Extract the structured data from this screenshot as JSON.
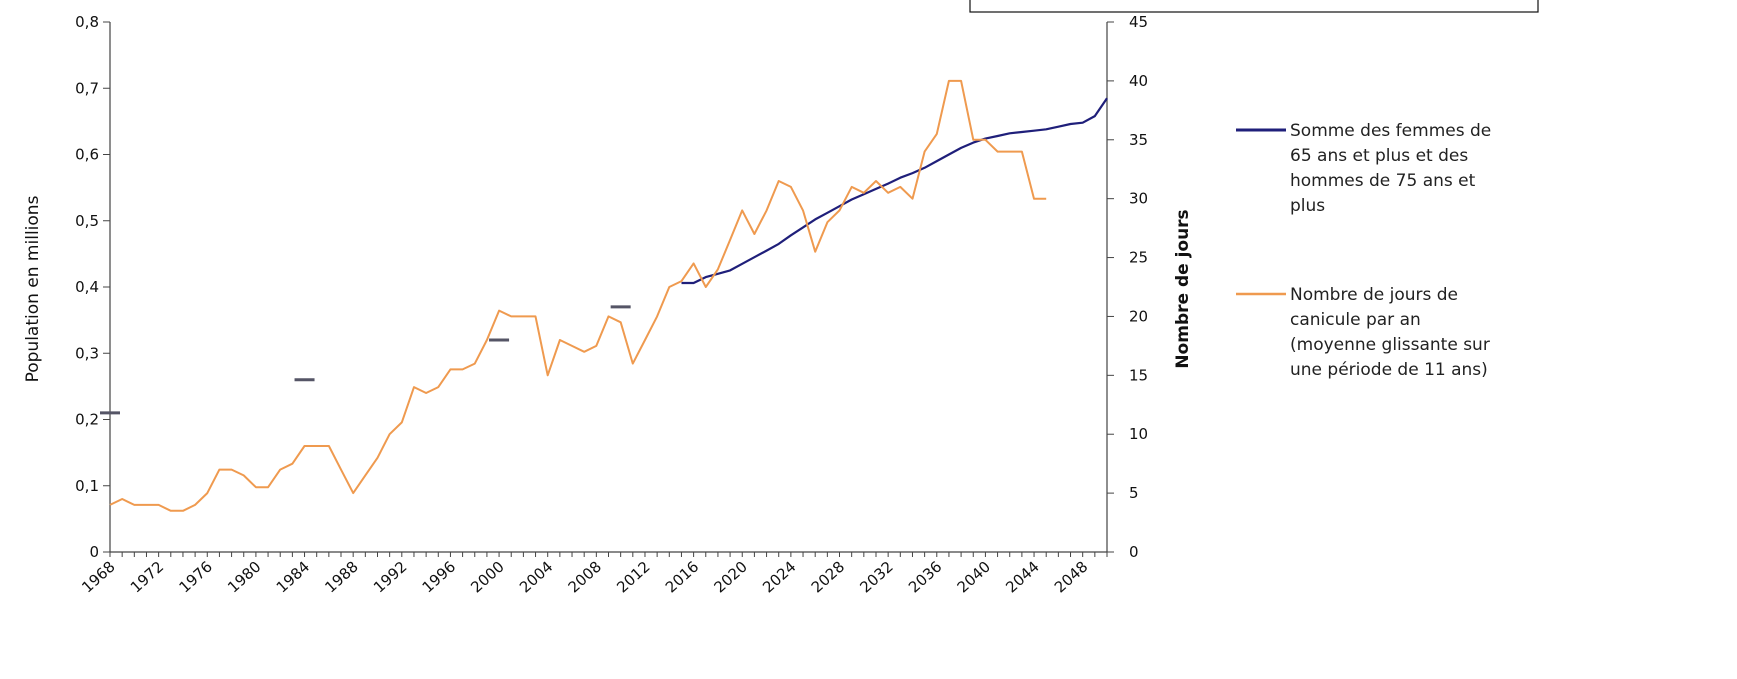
{
  "chart_data": {
    "type": "line",
    "ylabel_left": "Population en millions",
    "ylabel_right": "Nombre de jours",
    "y_left_range": [
      0,
      0.8
    ],
    "y_left_ticks": [
      "0",
      "0,1",
      "0,2",
      "0,3",
      "0,4",
      "0,5",
      "0,6",
      "0,7",
      "0,8"
    ],
    "y_right_range": [
      0,
      45
    ],
    "y_right_ticks": [
      "0",
      "5",
      "10",
      "15",
      "20",
      "25",
      "30",
      "35",
      "40",
      "45"
    ],
    "x_range": [
      1968,
      2050
    ],
    "x_tick_labels": [
      "1968",
      "1972",
      "1976",
      "1980",
      "1984",
      "1988",
      "1992",
      "1996",
      "2000",
      "2004",
      "2008",
      "2012",
      "2016",
      "2020",
      "2024",
      "2028",
      "2032",
      "2036",
      "2040",
      "2044",
      "2048"
    ],
    "grid": false,
    "legend_position": "right",
    "colors": {
      "population": "#1f1f7a",
      "heatwave": "#ef9a4f",
      "markers": "#555566",
      "axis": "#444444"
    },
    "series": [
      {
        "name": "Somme des femmes de 65 ans et plus et des hommes de 75 ans et plus",
        "axis": "left",
        "x": [
          2015,
          2016,
          2017,
          2018,
          2019,
          2020,
          2021,
          2022,
          2023,
          2024,
          2025,
          2026,
          2027,
          2028,
          2029,
          2030,
          2031,
          2032,
          2033,
          2034,
          2035,
          2036,
          2037,
          2038,
          2039,
          2040,
          2041,
          2042,
          2043,
          2044,
          2045,
          2046,
          2047,
          2048,
          2049,
          2050
        ],
        "values": [
          0.406,
          0.406,
          0.415,
          0.42,
          0.425,
          0.435,
          0.445,
          0.455,
          0.465,
          0.478,
          0.49,
          0.502,
          0.512,
          0.522,
          0.532,
          0.54,
          0.548,
          0.556,
          0.565,
          0.572,
          0.58,
          0.59,
          0.6,
          0.61,
          0.618,
          0.624,
          0.628,
          0.632,
          0.634,
          0.636,
          0.638,
          0.642,
          0.646,
          0.648,
          0.658,
          0.685
        ]
      },
      {
        "name": "Nombre de jours de canicule par an (moyenne glissante sur une période de 11 ans)",
        "axis": "right",
        "x": [
          1968,
          1969,
          1970,
          1971,
          1972,
          1973,
          1974,
          1975,
          1976,
          1977,
          1978,
          1979,
          1980,
          1981,
          1982,
          1983,
          1984,
          1985,
          1986,
          1987,
          1988,
          1989,
          1990,
          1991,
          1992,
          1993,
          1994,
          1995,
          1996,
          1997,
          1998,
          1999,
          2000,
          2001,
          2002,
          2003,
          2004,
          2005,
          2006,
          2007,
          2008,
          2009,
          2010,
          2011,
          2012,
          2013,
          2014,
          2015,
          2016,
          2017,
          2018,
          2019,
          2020,
          2021,
          2022,
          2023,
          2024,
          2025,
          2026,
          2027,
          2028,
          2029,
          2030,
          2031,
          2032,
          2033,
          2034,
          2035,
          2036,
          2037,
          2038,
          2039,
          2040,
          2041,
          2042,
          2043,
          2044,
          2045
        ],
        "values": [
          4,
          4.5,
          4,
          4,
          4,
          3.5,
          3.5,
          4,
          5,
          7,
          7,
          6.5,
          5.5,
          5.5,
          7,
          7.5,
          9,
          9,
          9,
          7,
          5,
          6.5,
          8,
          10,
          11,
          14,
          13.5,
          14,
          15.5,
          15.5,
          16,
          18,
          20.5,
          20,
          20,
          20,
          15,
          18,
          17.5,
          17,
          17.5,
          20,
          19.5,
          16,
          18,
          20,
          22.5,
          23,
          24.5,
          22.5,
          24,
          26.5,
          29,
          27,
          29,
          31.5,
          31,
          29,
          25.5,
          28,
          29,
          31,
          30.5,
          31.5,
          30.5,
          31,
          30,
          34,
          35.5,
          40,
          40,
          35,
          35,
          34,
          34,
          34,
          30,
          30
        ]
      }
    ],
    "markers": [
      {
        "x": 1968,
        "value": 0.21
      },
      {
        "x": 1984,
        "value": 0.26
      },
      {
        "x": 2000,
        "value": 0.32
      },
      {
        "x": 2010,
        "value": 0.37
      }
    ]
  }
}
